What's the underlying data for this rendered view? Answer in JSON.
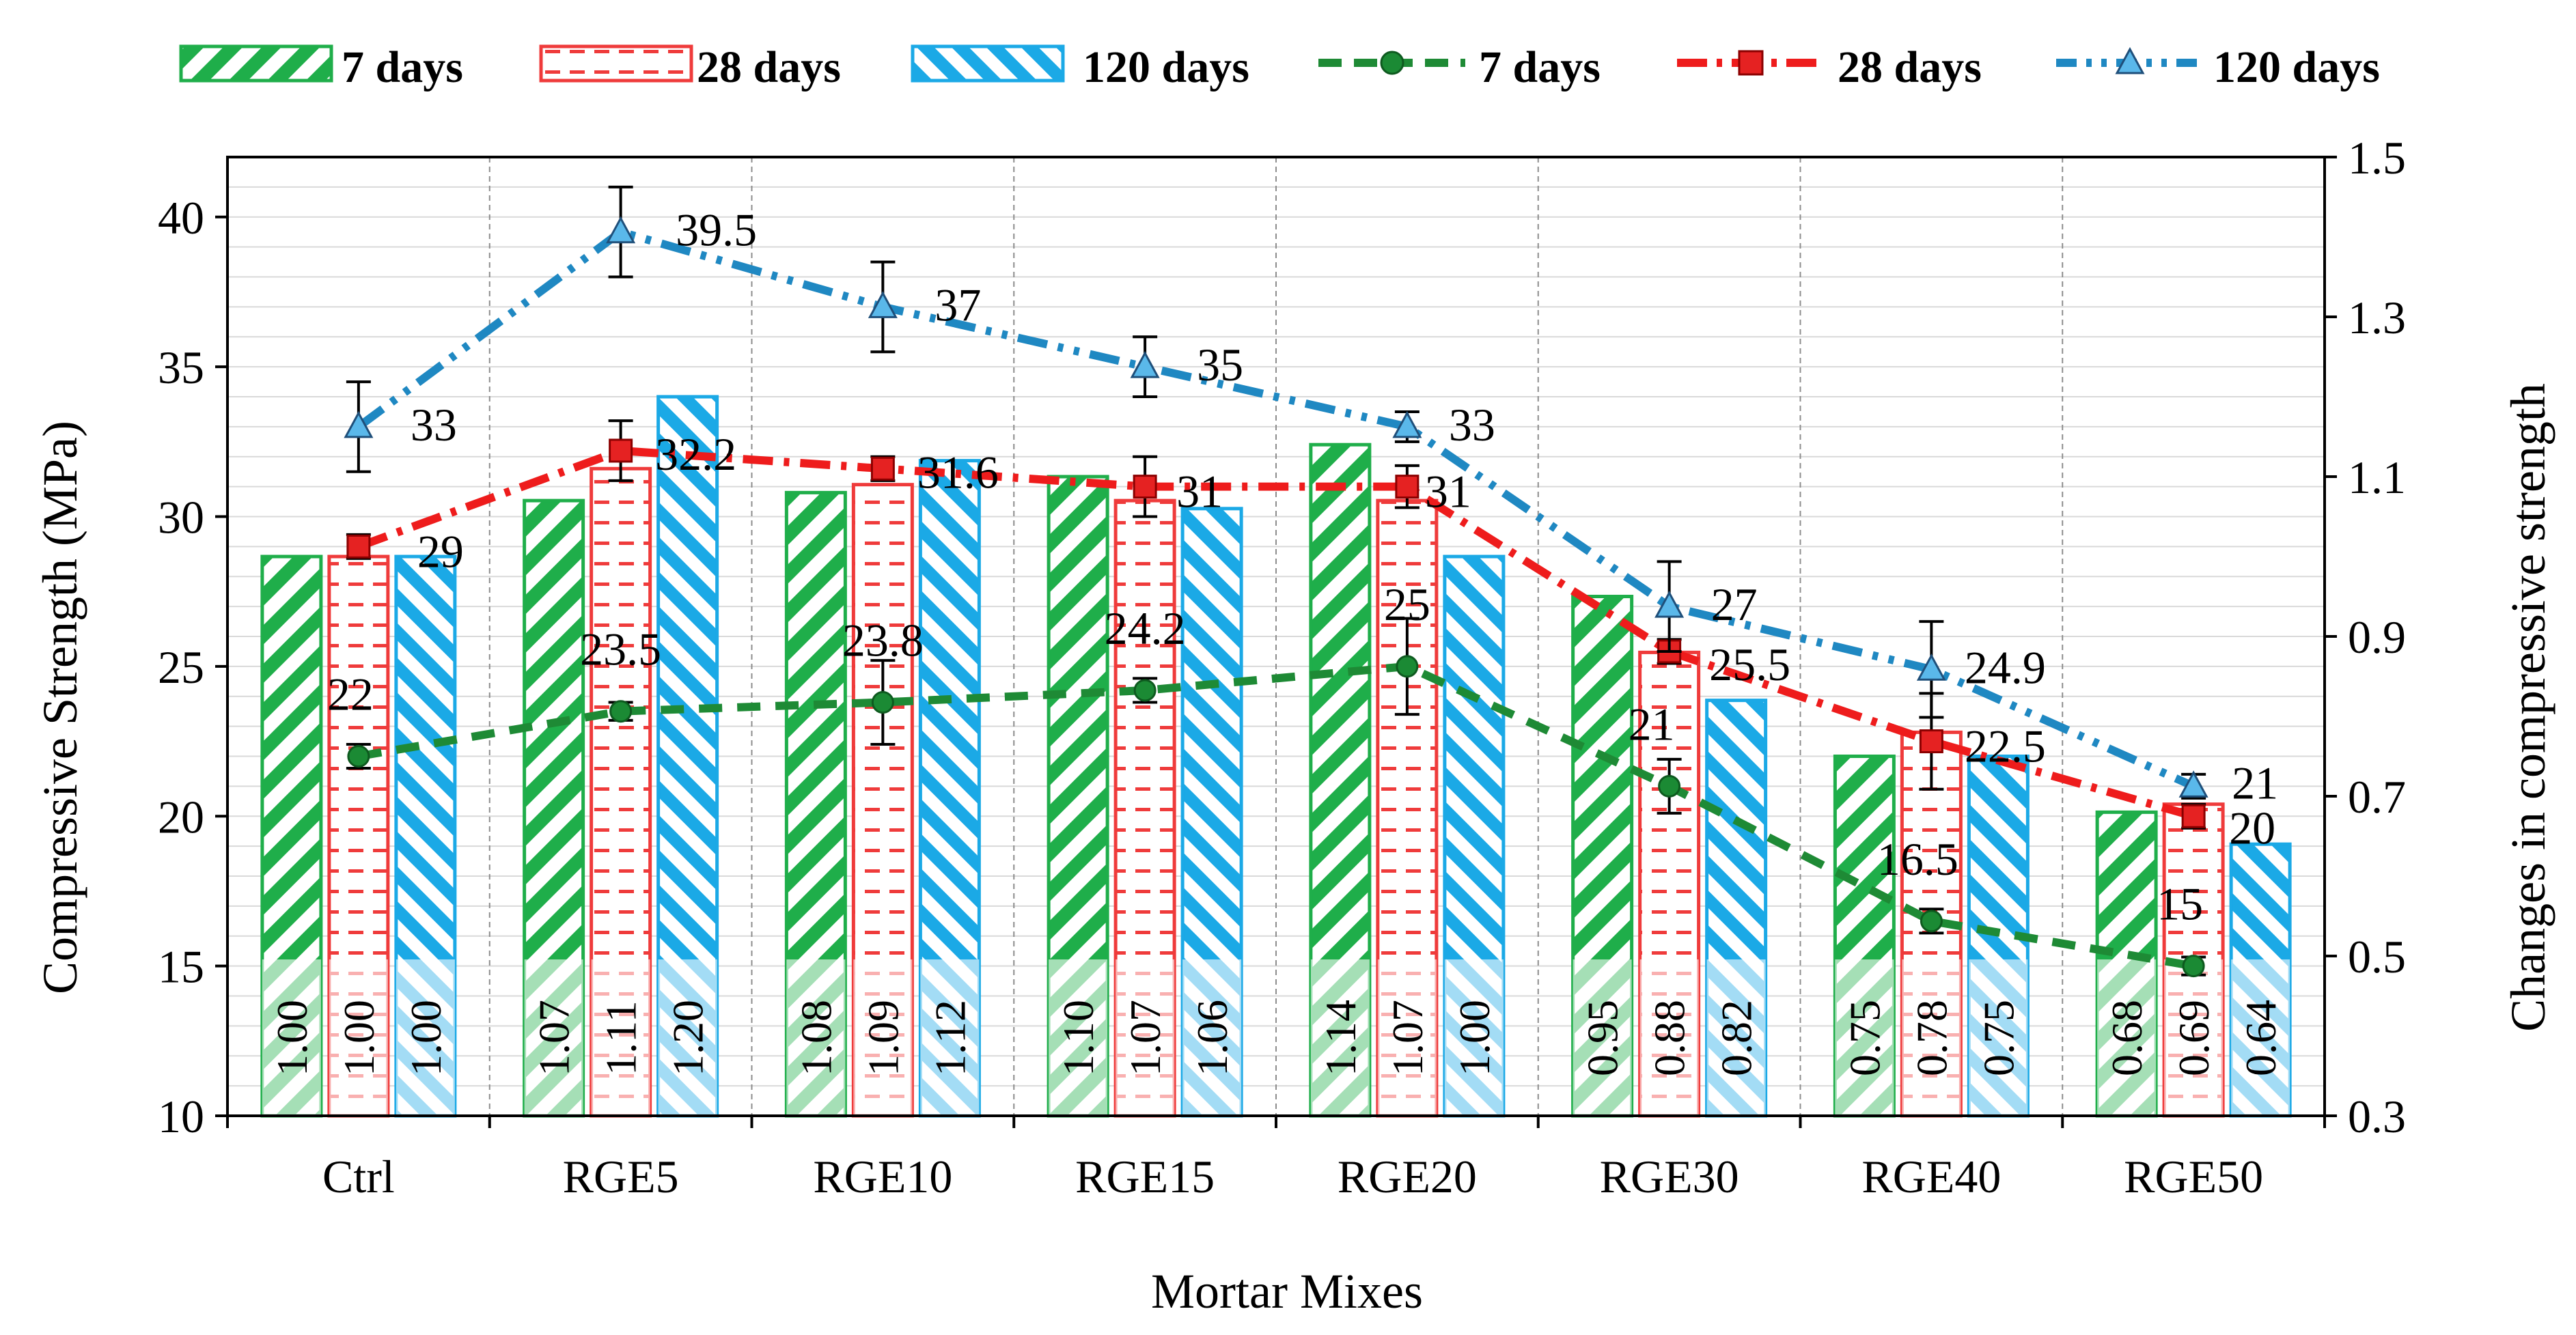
{
  "chart_data": {
    "type": "bar",
    "title": "",
    "xlabel": "Mortar Mixes",
    "ylabel": "Compressive Strength (MPa)",
    "y2label": "Changes in compressive strength",
    "ylim": [
      10,
      42
    ],
    "y_ticks": [
      10,
      15,
      20,
      25,
      30,
      35,
      40
    ],
    "y2lim": [
      0.3,
      1.5
    ],
    "y2_ticks": [
      "0.3",
      "0.5",
      "0.7",
      "0.9",
      "1.1",
      "1.3",
      "1.5"
    ],
    "categories": [
      "Ctrl",
      "RGE5",
      "RGE10",
      "RGE15",
      "RGE20",
      "RGE30",
      "RGE40",
      "RGE50"
    ],
    "bar_series": [
      {
        "name": "7 days",
        "color": "#1fae4a",
        "pattern": "diag-down",
        "values": [
          1.0,
          1.07,
          1.08,
          1.1,
          1.14,
          0.95,
          0.75,
          0.68
        ],
        "labels": [
          "1.00",
          "1.07",
          "1.08",
          "1.10",
          "1.14",
          "0.95",
          "0.75",
          "0.68"
        ]
      },
      {
        "name": "28 days",
        "color": "#ef3b3b",
        "pattern": "dashes",
        "values": [
          1.0,
          1.11,
          1.09,
          1.07,
          1.07,
          0.88,
          0.78,
          0.69
        ],
        "labels": [
          "1.00",
          "1.11",
          "1.09",
          "1.07",
          "1.07",
          "0.88",
          "0.78",
          "0.69"
        ]
      },
      {
        "name": "120 days",
        "color": "#1ba9e6",
        "pattern": "diag-up",
        "values": [
          1.0,
          1.2,
          1.12,
          1.06,
          1.0,
          0.82,
          0.75,
          0.64
        ],
        "labels": [
          "1.00",
          "1.20",
          "1.12",
          "1.06",
          "1.00",
          "0.82",
          "0.75",
          "0.64"
        ]
      }
    ],
    "line_series": [
      {
        "name": "7 days",
        "color": "#1e8a35",
        "marker": "circle",
        "dash": "dashed",
        "values": [
          22,
          23.5,
          23.8,
          24.2,
          25,
          21,
          16.5,
          15
        ],
        "labels": [
          "22",
          "23.5",
          "23.8",
          "24.2",
          "25",
          "21",
          "16.5",
          "15"
        ],
        "errors": [
          0.4,
          0.3,
          1.4,
          0.4,
          1.6,
          0.9,
          0.4,
          0.3
        ]
      },
      {
        "name": "28 days",
        "color": "#ee1c1c",
        "marker": "square",
        "dash": "dashdot",
        "values": [
          29,
          32.2,
          31.6,
          31,
          31,
          25.5,
          22.5,
          20
        ],
        "labels": [
          "29",
          "32.2",
          "31.6",
          "31",
          "31",
          "25.5",
          "22.5",
          "20"
        ],
        "errors": [
          0.4,
          1.0,
          0.4,
          1.0,
          0.7,
          0.4,
          1.6,
          0.4
        ]
      },
      {
        "name": "120 days",
        "color": "#1f88c2",
        "marker": "triangle",
        "dash": "dashdotdot",
        "values": [
          33,
          39.5,
          37,
          35,
          33,
          27,
          24.9,
          21
        ],
        "labels": [
          "33",
          "39.5",
          "37",
          "35",
          "33",
          "27",
          "24.9",
          "21"
        ],
        "errors": [
          1.5,
          1.5,
          1.5,
          1.0,
          0.5,
          1.5,
          1.6,
          0.4
        ]
      }
    ],
    "legend": [
      "7 days",
      "28 days",
      "120 days",
      "7 days",
      "28 days",
      "120 days"
    ],
    "legend_position": "top",
    "grid": true
  }
}
